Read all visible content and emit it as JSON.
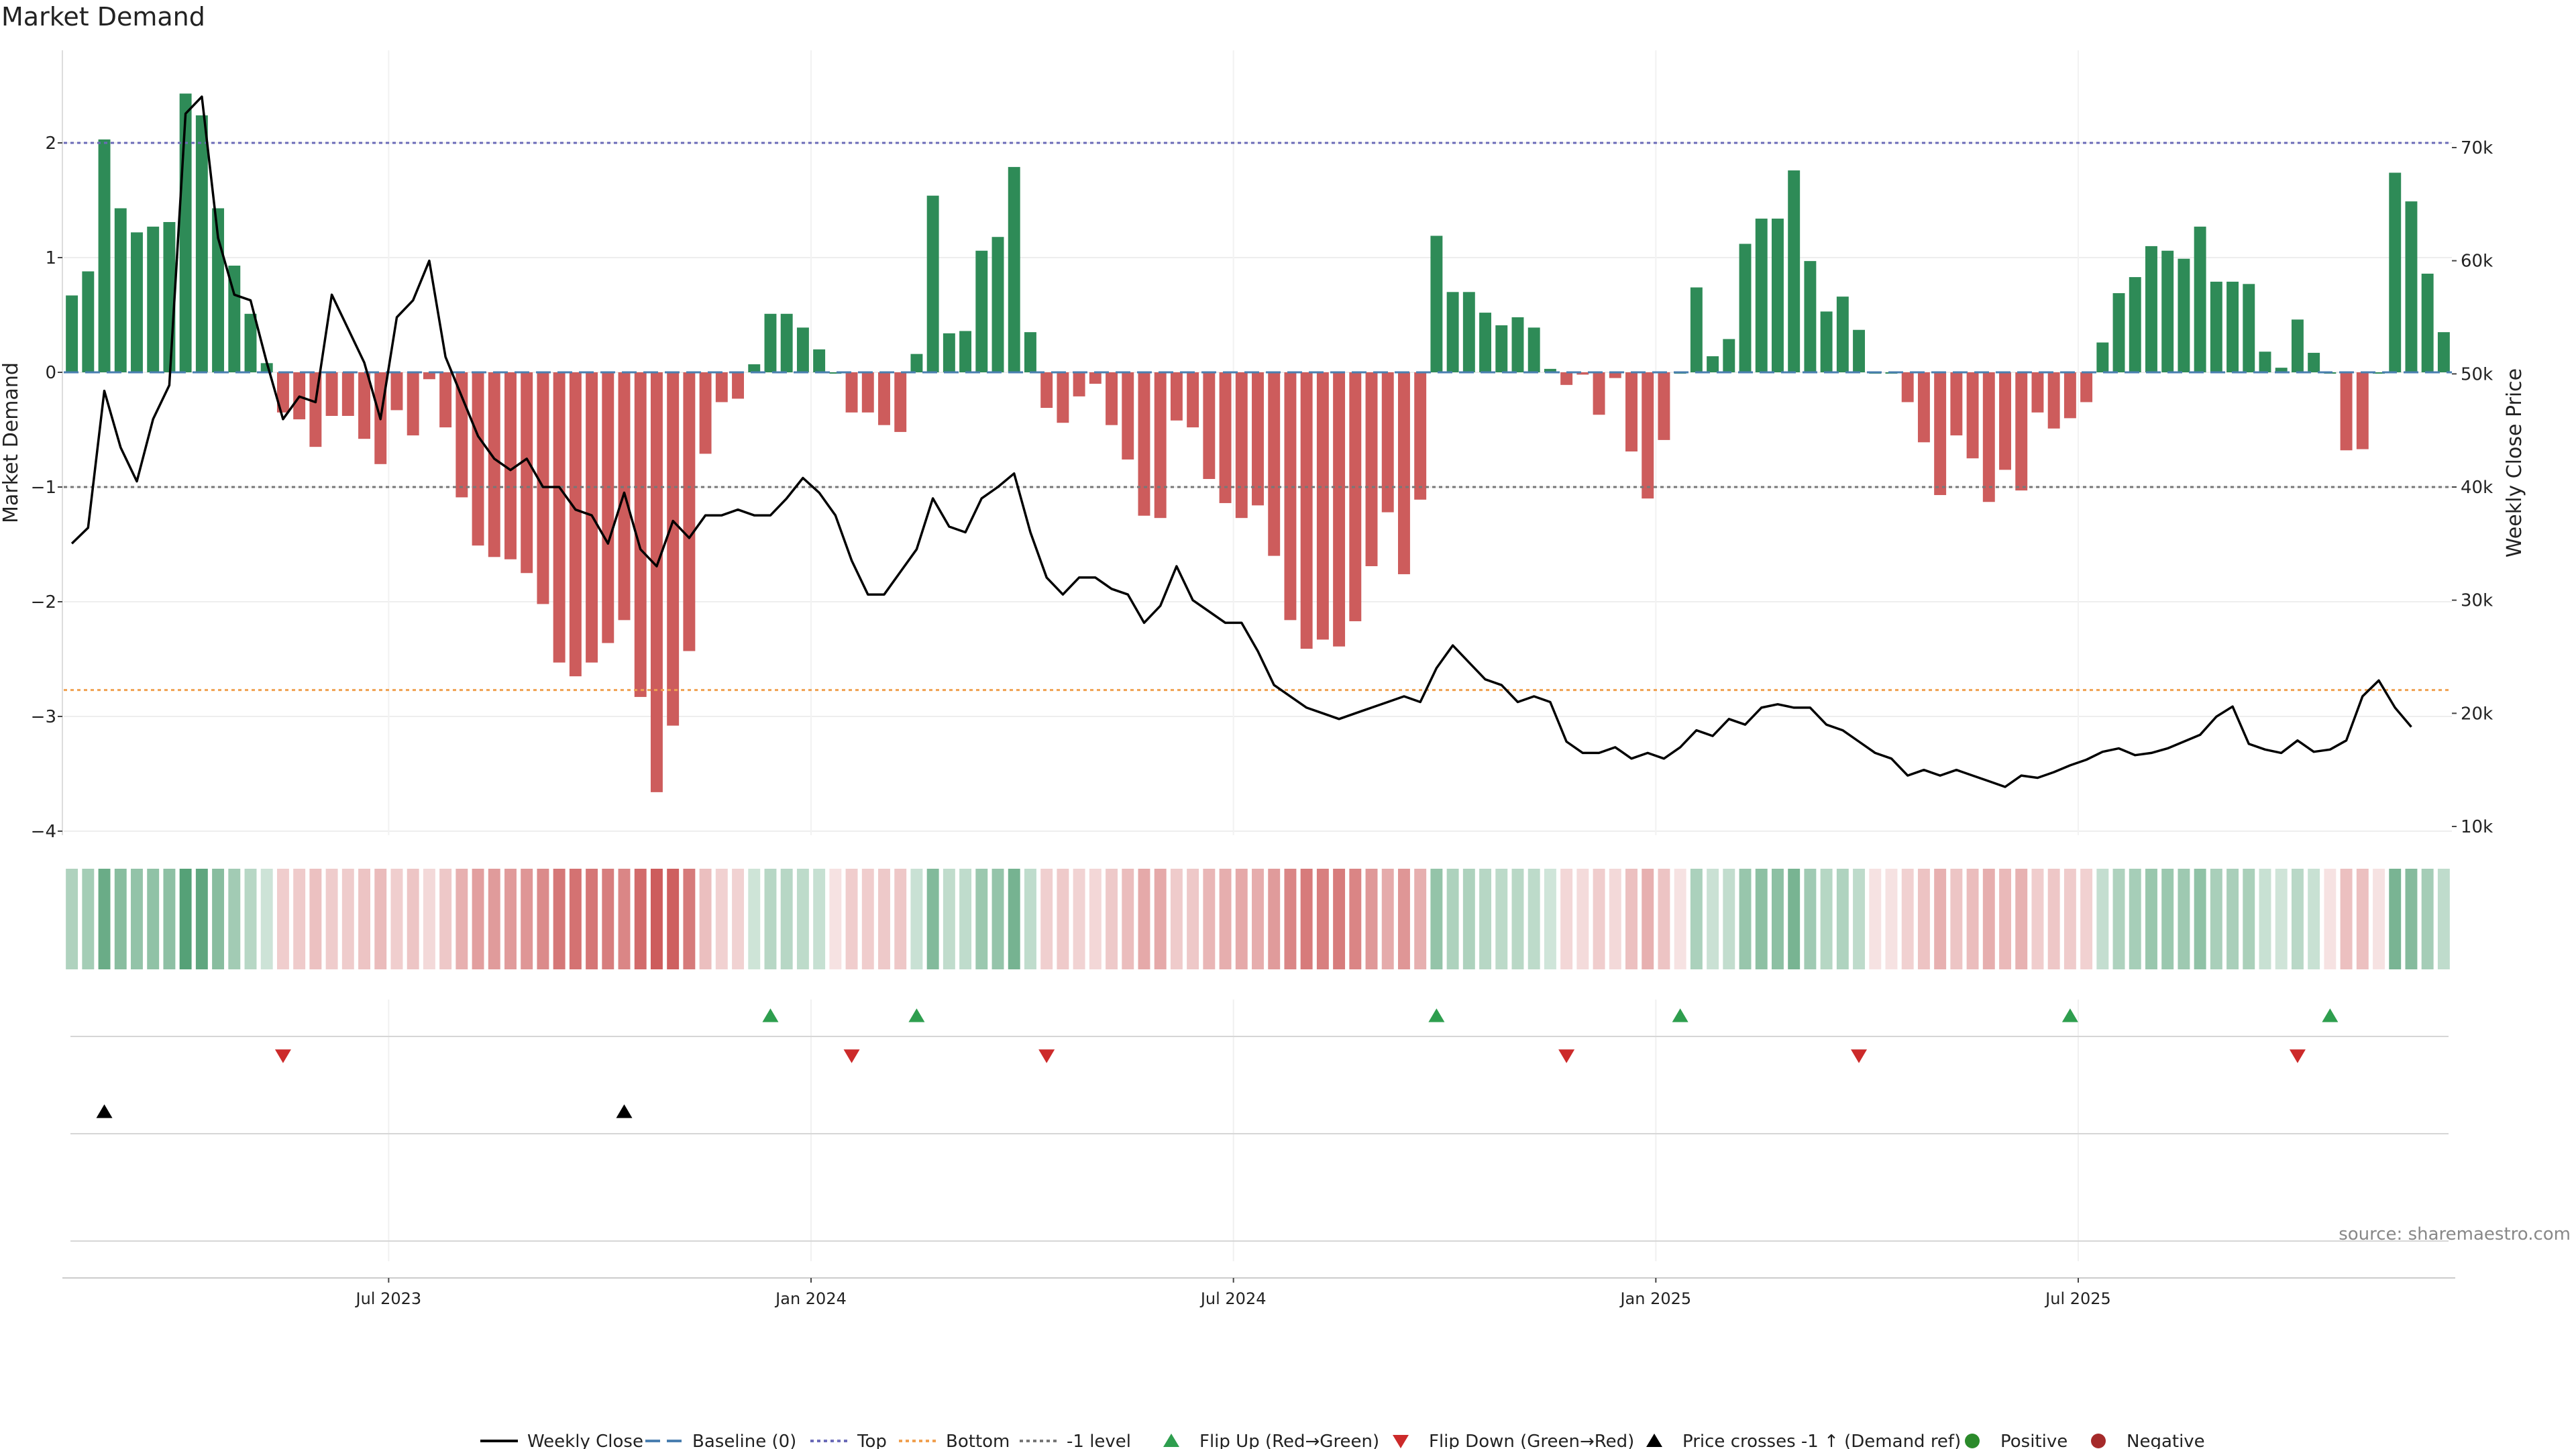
{
  "chart_data": {
    "type": "bar",
    "title": "Market Demand",
    "ylabel": "Market Demand",
    "y2label": "Weekly Close Price",
    "ylim": [
      -4,
      2.5
    ],
    "y2lim": [
      10000,
      74000
    ],
    "yticks": [
      2,
      1,
      0,
      -1,
      -2,
      -3,
      -4
    ],
    "yticklabels": [
      "2",
      "1",
      "0",
      "−1",
      "−2",
      "−3",
      "−4"
    ],
    "y2ticks": [
      70000,
      60000,
      50000,
      40000,
      30000,
      20000,
      10000
    ],
    "y2ticklabels": [
      "70k",
      "60k",
      "50k",
      "40k",
      "30k",
      "20k",
      "10k"
    ],
    "xticklabels": [
      "Jul 2023",
      "Jan 2024",
      "Jul 2024",
      "Jan 2025",
      "Jul 2025"
    ],
    "xtick_index": [
      20,
      46,
      72,
      98,
      124
    ],
    "reference_lines": {
      "top": 2.0,
      "bottom": -2.77,
      "minus_one": -1.0,
      "baseline": 0
    },
    "source": "source: sharemaestro.com",
    "legend": [
      "Weekly Close",
      "Baseline (0)",
      "Top",
      "Bottom",
      "-1 level",
      "Flip Up (Red→Green)",
      "Flip Down (Green→Red)",
      "Price crosses -1 ↑ (Demand ref)",
      "Positive",
      "Negative"
    ],
    "colors": {
      "positive": "#2e8b57",
      "negative": "#cd5c5c",
      "price": "#000000",
      "top": "#6a6ab8",
      "bottom": "#f0a050",
      "minus_one": "#777777",
      "baseline": "#4a7fb0",
      "flip_up": "#2e9e4e",
      "flip_down": "#cc2a2a",
      "positive_dot": "#2b8a2b",
      "negative_dot": "#a52a2a"
    },
    "series": [
      {
        "name": "Market Demand",
        "values": [
          0.67,
          0.88,
          2.03,
          1.43,
          1.22,
          1.27,
          1.31,
          2.43,
          2.24,
          1.43,
          0.93,
          0.51,
          0.08,
          -0.35,
          -0.41,
          -0.65,
          -0.38,
          -0.38,
          -0.58,
          -0.8,
          -0.33,
          -0.55,
          -0.06,
          -0.48,
          -1.09,
          -1.51,
          -1.61,
          -1.63,
          -1.75,
          -2.02,
          -2.53,
          -2.65,
          -2.53,
          -2.36,
          -2.16,
          -2.83,
          -3.66,
          -3.08,
          -2.43,
          -0.71,
          -0.26,
          -0.23,
          0.07,
          0.51,
          0.51,
          0.39,
          0.2,
          0,
          -0.35,
          -0.35,
          -0.46,
          -0.52,
          0.16,
          1.54,
          0.34,
          0.36,
          1.06,
          1.18,
          1.79,
          0.35,
          -0.31,
          -0.44,
          -0.21,
          -0.1,
          -0.46,
          -0.76,
          -1.25,
          -1.27,
          -0.42,
          -0.48,
          -0.93,
          -1.14,
          -1.27,
          -1.16,
          -1.6,
          -2.16,
          -2.41,
          -2.33,
          -2.39,
          -2.17,
          -1.69,
          -1.22,
          -1.76,
          -1.11,
          1.19,
          0.7,
          0.7,
          0.52,
          0.41,
          0.48,
          0.39,
          0.03,
          -0.11,
          -0.02,
          -0.37,
          -0.05,
          -0.69,
          -1.1,
          -0.59,
          0,
          0.74,
          0.14,
          0.29,
          1.12,
          1.34,
          1.34,
          1.76,
          0.97,
          0.53,
          0.66,
          0.37,
          0,
          0,
          -0.26,
          -0.61,
          -1.07,
          -0.55,
          -0.75,
          -1.13,
          -0.85,
          -1.03,
          -0.35,
          -0.49,
          -0.4,
          -0.26,
          0.26,
          0.69,
          0.83,
          1.1,
          1.06,
          0.99,
          1.27,
          0.79,
          0.79,
          0.77,
          0.18,
          0.04,
          0.46,
          0.17,
          0,
          -0.68,
          -0.67,
          0,
          1.74,
          1.49,
          0.86,
          0.35
        ]
      },
      {
        "name": "Weekly Close",
        "values": [
          35,
          36.4,
          48.5,
          43.5,
          40.5,
          46,
          49,
          73,
          74.5,
          62,
          57,
          56.5,
          51,
          46,
          48,
          47.5,
          57,
          54,
          51,
          46,
          55,
          56.5,
          60,
          51.5,
          48,
          44.5,
          42.5,
          41.5,
          42.5,
          40,
          40,
          38,
          37.5,
          35,
          39.5,
          34.5,
          33,
          37,
          35.5,
          37.5,
          37.5,
          38,
          37.5,
          37.5,
          39,
          40.8,
          39.5,
          37.5,
          33.5,
          30.5,
          30.5,
          32.5,
          34.5,
          39,
          36.5,
          36,
          39,
          40,
          41.2,
          36,
          32,
          30.5,
          32,
          32,
          31,
          30.5,
          28,
          29.5,
          33,
          30,
          29,
          28,
          28,
          25.5,
          22.5,
          21.5,
          20.5,
          20,
          19.5,
          20,
          20.5,
          21,
          21.5,
          21,
          24,
          26,
          24.5,
          23,
          22.5,
          21,
          21.5,
          21,
          17.5,
          16.5,
          16.5,
          17,
          16,
          16.5,
          16,
          17,
          18.5,
          18,
          19.5,
          19,
          20.5,
          20.8,
          20.5,
          20.5,
          19,
          18.5,
          17.5,
          16.5,
          16,
          14.5,
          15,
          14.5,
          15,
          14.5,
          14,
          13.5,
          14.5,
          14.3,
          14.8,
          15.4,
          15.9,
          16.6,
          16.9,
          16.3,
          16.5,
          16.9,
          17.5,
          18.1,
          19.7,
          20.6,
          17.3,
          16.8,
          16.5,
          17.6,
          16.6,
          16.8,
          17.6,
          21.5,
          22.9,
          20.5,
          18.8
        ]
      }
    ],
    "flip_up_index": [
      43,
      52,
      84,
      99,
      123,
      139
    ],
    "flip_down_index": [
      13,
      48,
      60,
      92,
      110,
      137
    ],
    "price_cross_index": [
      2,
      34
    ]
  }
}
